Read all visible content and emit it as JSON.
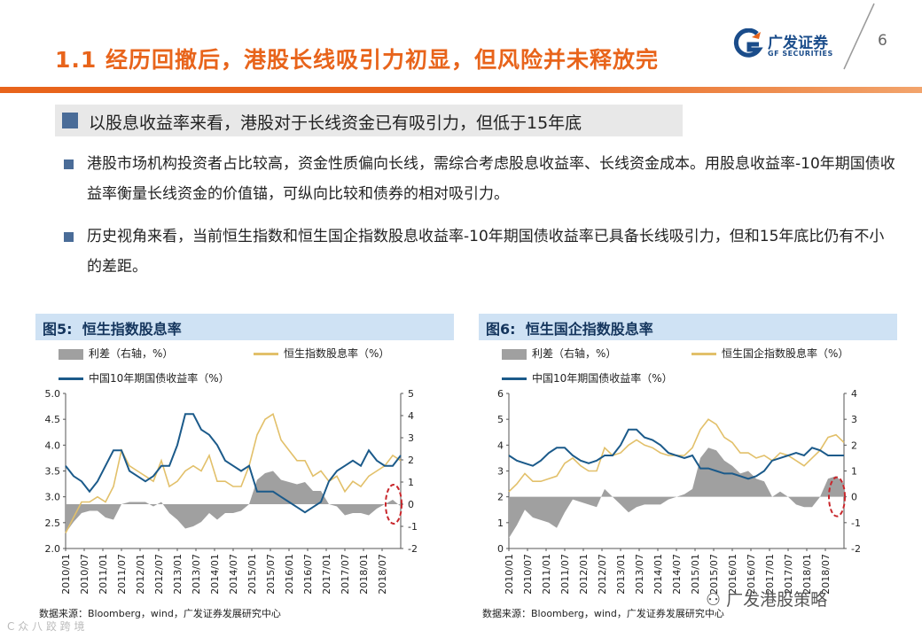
{
  "header": {
    "title": "1.1 经历回撤后，港股长线吸引力初显，但风险并未释放完",
    "logo_text": "广发证券",
    "logo_sub": "GF SECURITIES",
    "page_number": "6"
  },
  "section": {
    "heading": "以股息收益率来看，港股对于长线资金已有吸引力，但低于15年底"
  },
  "bullets": [
    {
      "text": "港股市场机构投资者占比较高，资金性质偏向长线，需综合考虑股息收益率、长线资金成本。用股息收益率-10年期国债收益率衡量长线资金的价值锚，可纵向比较和债券的相对吸引力。"
    },
    {
      "text": "历史视角来看，当前恒生指数和恒生国企指数股息收益率-10年期国债收益率已具备长线吸引力，但和15年底比仍有不小的差距。"
    }
  ],
  "colors": {
    "accent": "#e8641b",
    "navy": "#1b5a8a",
    "gold": "#e2c06a",
    "gray": "#a0a0a0",
    "panel_head": "#cfe2f4"
  },
  "chart_data": [
    {
      "type": "line",
      "figure_label": "图5:",
      "title": "恒生指数股息率",
      "legend": {
        "spread": "利差（右轴，%）",
        "dividend": "恒生指数股息率（%）",
        "bond": "中国10年期国债收益率（%）"
      },
      "x_labels": [
        "2010/01",
        "2010/07",
        "2011/01",
        "2011/07",
        "2012/01",
        "2012/07",
        "2013/01",
        "2013/07",
        "2014/01",
        "2014/07",
        "2015/01",
        "2015/07",
        "2016/01",
        "2016/07",
        "2017/01",
        "2017/07",
        "2018/01",
        "2018/07"
      ],
      "y_left": {
        "min": 2.0,
        "max": 5.0,
        "ticks": [
          "5.0",
          "4.5",
          "4.0",
          "3.5",
          "3.0",
          "2.5",
          "2.0"
        ]
      },
      "y_right": {
        "min": -2,
        "max": 5,
        "ticks": [
          "5",
          "4",
          "3",
          "2",
          "1",
          "0",
          "-1",
          "-2"
        ]
      },
      "bond_series": [
        3.6,
        3.4,
        3.3,
        3.1,
        3.3,
        3.6,
        3.9,
        3.9,
        3.5,
        3.4,
        3.3,
        3.4,
        3.6,
        3.6,
        4.0,
        4.6,
        4.6,
        4.3,
        4.2,
        4.0,
        3.7,
        3.6,
        3.5,
        3.6,
        3.1,
        3.1,
        3.1,
        3.0,
        2.9,
        2.8,
        2.7,
        2.8,
        2.9,
        3.3,
        3.5,
        3.6,
        3.7,
        3.6,
        3.9,
        3.7,
        3.6,
        3.6,
        3.8
      ],
      "dividend_series": [
        2.3,
        2.6,
        2.9,
        2.9,
        3.0,
        2.9,
        3.2,
        3.9,
        3.6,
        3.5,
        3.4,
        3.3,
        3.7,
        3.2,
        3.3,
        3.5,
        3.6,
        3.5,
        3.8,
        3.3,
        3.3,
        3.2,
        3.2,
        3.6,
        4.2,
        4.5,
        4.6,
        4.1,
        3.9,
        3.7,
        3.7,
        3.4,
        3.5,
        3.3,
        3.4,
        3.1,
        3.3,
        3.2,
        3.4,
        3.5,
        3.6,
        3.8,
        3.7
      ],
      "spread_series": [
        -1.3,
        -0.8,
        -0.4,
        -0.3,
        -0.3,
        -0.6,
        -0.7,
        0.0,
        0.1,
        0.1,
        0.1,
        -0.1,
        0.1,
        -0.4,
        -0.7,
        -1.1,
        -1.0,
        -0.8,
        -0.4,
        -0.7,
        -0.4,
        -0.4,
        -0.3,
        0.0,
        1.1,
        1.4,
        1.5,
        1.1,
        1.0,
        0.9,
        1.0,
        0.6,
        0.6,
        0.0,
        -0.1,
        -0.5,
        -0.4,
        -0.4,
        -0.5,
        -0.2,
        0.0,
        0.2,
        -0.1
      ],
      "source": "数据来源：Bloomberg，wind，广发证券发展研究中心"
    },
    {
      "type": "line",
      "figure_label": "图6:",
      "title": "恒生国企指数股息率",
      "legend": {
        "spread": "利差（右轴，%）",
        "dividend": "恒生国企指数股息率（%）",
        "bond": "中国10年期国债收益率（%）"
      },
      "x_labels": [
        "2010/01",
        "2010/07",
        "2011/01",
        "2011/07",
        "2012/01",
        "2012/07",
        "2013/01",
        "2013/07",
        "2014/01",
        "2014/07",
        "2015/01",
        "2015/07",
        "2016/01",
        "2016/07",
        "2017/01",
        "2017/07",
        "2018/01",
        "2018/07"
      ],
      "y_left": {
        "min": 0,
        "max": 6,
        "ticks": [
          "6",
          "5",
          "4",
          "3",
          "2",
          "1",
          "0"
        ]
      },
      "y_right": {
        "min": -2,
        "max": 4,
        "ticks": [
          "4",
          "3",
          "2",
          "1",
          "0",
          "-1",
          "-2"
        ]
      },
      "bond_series": [
        3.6,
        3.4,
        3.3,
        3.2,
        3.4,
        3.7,
        3.9,
        3.9,
        3.6,
        3.4,
        3.3,
        3.4,
        3.6,
        3.6,
        4.0,
        4.6,
        4.6,
        4.3,
        4.2,
        4.0,
        3.7,
        3.6,
        3.5,
        3.6,
        3.1,
        3.1,
        3.0,
        2.9,
        2.9,
        2.8,
        2.7,
        2.8,
        3.0,
        3.4,
        3.5,
        3.6,
        3.7,
        3.6,
        3.9,
        3.8,
        3.6,
        3.6,
        3.6
      ],
      "dividend_series": [
        2.2,
        2.5,
        2.9,
        2.6,
        2.6,
        2.7,
        2.8,
        3.3,
        3.5,
        3.2,
        3.0,
        3.0,
        3.9,
        3.6,
        3.7,
        4.0,
        4.2,
        4.0,
        3.9,
        3.7,
        3.6,
        3.6,
        3.6,
        3.9,
        4.6,
        5.0,
        4.8,
        4.3,
        4.1,
        3.7,
        3.7,
        3.5,
        3.6,
        3.4,
        3.7,
        3.6,
        3.4,
        3.2,
        3.5,
        3.8,
        4.3,
        4.4,
        4.1
      ],
      "spread_series": [
        -1.6,
        -1.1,
        -0.5,
        -0.8,
        -0.9,
        -1.0,
        -1.2,
        -0.6,
        -0.1,
        -0.2,
        -0.3,
        -0.4,
        0.3,
        0.0,
        -0.3,
        -0.6,
        -0.4,
        -0.3,
        -0.3,
        -0.3,
        -0.1,
        0.0,
        0.1,
        0.3,
        1.5,
        1.9,
        1.8,
        1.4,
        1.2,
        0.9,
        1.0,
        0.7,
        0.6,
        0.0,
        0.2,
        0.0,
        -0.3,
        -0.4,
        -0.4,
        0.0,
        0.7,
        0.8,
        0.5
      ],
      "source": "数据来源：Bloomberg，wind，广发证券发展研究中心"
    }
  ],
  "watermark": {
    "wechat": "广发港股策略",
    "corner": "C 众 八 跤 跨 境"
  }
}
